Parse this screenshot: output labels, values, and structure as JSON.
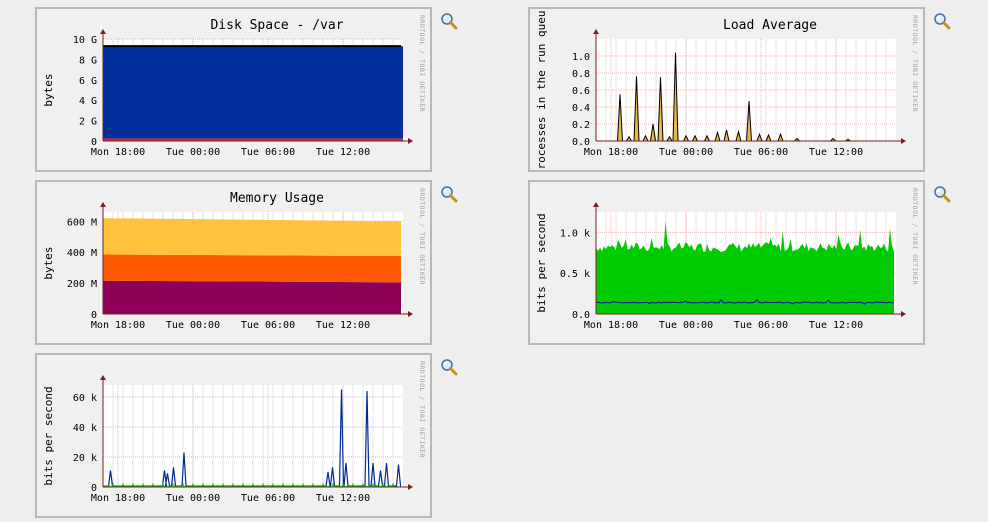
{
  "watermark": "RRDTOOL / TOBI OETIKER",
  "zoom_icon": "magnifier-zoom-icon",
  "charts": [
    {
      "id": "disk",
      "type": "area",
      "title": "Disk Space - /var",
      "ylabel": "bytes",
      "ymax": 10,
      "yticks": [
        {
          "v": 0,
          "label": "0"
        },
        {
          "v": 2,
          "label": "2 G"
        },
        {
          "v": 4,
          "label": "4 G"
        },
        {
          "v": 6,
          "label": "6 G"
        },
        {
          "v": 8,
          "label": "8 G"
        },
        {
          "v": 10,
          "label": "10 G"
        }
      ],
      "xticks": [
        "Mon 18:00",
        "Tue 00:00",
        "Tue 06:00",
        "Tue 12:00"
      ],
      "stack": [
        {
          "color": "#d3243b",
          "value": 0.25
        },
        {
          "color": "#00309c",
          "value": 9.05
        }
      ],
      "topline": {
        "color": "#000000",
        "value": 9.3
      }
    },
    {
      "id": "load",
      "type": "spikes",
      "title": "Load Average",
      "ylabel": "rocesses in the run queu",
      "ymax": 1.2,
      "yticks": [
        {
          "v": 0,
          "label": "0.0"
        },
        {
          "v": 0.2,
          "label": "0.2"
        },
        {
          "v": 0.4,
          "label": "0.4"
        },
        {
          "v": 0.6,
          "label": "0.6"
        },
        {
          "v": 0.8,
          "label": "0.8"
        },
        {
          "v": 1.0,
          "label": "1.0"
        }
      ],
      "xticks": [
        "Mon 18:00",
        "Tue 00:00",
        "Tue 06:00",
        "Tue 12:00"
      ],
      "fill": "#e8b84a",
      "line": "#000000",
      "spikes": [
        [
          0.08,
          0.55
        ],
        [
          0.11,
          0.05
        ],
        [
          0.135,
          0.76
        ],
        [
          0.165,
          0.06
        ],
        [
          0.19,
          0.2
        ],
        [
          0.215,
          0.75
        ],
        [
          0.245,
          0.05
        ],
        [
          0.265,
          1.04
        ],
        [
          0.3,
          0.06
        ],
        [
          0.33,
          0.06
        ],
        [
          0.37,
          0.06
        ],
        [
          0.405,
          0.1
        ],
        [
          0.435,
          0.13
        ],
        [
          0.475,
          0.11
        ],
        [
          0.51,
          0.47
        ],
        [
          0.545,
          0.08
        ],
        [
          0.575,
          0.07
        ],
        [
          0.615,
          0.08
        ],
        [
          0.67,
          0.03
        ],
        [
          0.79,
          0.03
        ],
        [
          0.84,
          0.02
        ]
      ]
    },
    {
      "id": "memory",
      "type": "area",
      "title": "Memory Usage",
      "ylabel": "bytes",
      "ymax": 660,
      "yticks": [
        {
          "v": 0,
          "label": "0"
        },
        {
          "v": 200,
          "label": "200 M"
        },
        {
          "v": 400,
          "label": "400 M"
        },
        {
          "v": 600,
          "label": "600 M"
        }
      ],
      "xticks": [
        "Mon 18:00",
        "Tue 00:00",
        "Tue 06:00",
        "Tue 12:00"
      ],
      "stack_series": [
        {
          "color": "#8c0058",
          "start": 215,
          "end": 205
        },
        {
          "color": "#ff5a00",
          "start": 170,
          "end": 170
        },
        {
          "color": "#ffc23c",
          "start": 235,
          "end": 225
        }
      ]
    },
    {
      "id": "traffic1",
      "type": "noise",
      "title": "",
      "ylabel": "bits per second",
      "ymax": 1.25,
      "yticks": [
        {
          "v": 0,
          "label": "0.0"
        },
        {
          "v": 0.5,
          "label": "0.5 k"
        },
        {
          "v": 1.0,
          "label": "1.0 k"
        }
      ],
      "xticks": [
        "Mon 18:00",
        "Tue 00:00",
        "Tue 06:00",
        "Tue 12:00"
      ],
      "in_color": "#00cc00",
      "out_color": "#002a97",
      "in_level": 0.82,
      "out_level": 0.14
    },
    {
      "id": "traffic2",
      "type": "peaks",
      "title": "",
      "ylabel": "bits per second",
      "ymax": 68,
      "yticks": [
        {
          "v": 0,
          "label": "0"
        },
        {
          "v": 20,
          "label": "20 k"
        },
        {
          "v": 40,
          "label": "40 k"
        },
        {
          "v": 60,
          "label": "60 k"
        }
      ],
      "xticks": [
        "Mon 18:00",
        "Tue 00:00",
        "Tue 06:00",
        "Tue 12:00"
      ],
      "in_color": "#00cc00",
      "out_color": "#002a97",
      "peaks": [
        [
          0.025,
          11
        ],
        [
          0.205,
          11
        ],
        [
          0.215,
          9
        ],
        [
          0.235,
          13
        ],
        [
          0.27,
          23
        ],
        [
          0.75,
          10
        ],
        [
          0.765,
          13
        ],
        [
          0.795,
          65
        ],
        [
          0.81,
          16
        ],
        [
          0.88,
          64
        ],
        [
          0.9,
          16
        ],
        [
          0.925,
          11
        ],
        [
          0.945,
          16
        ],
        [
          0.985,
          15
        ]
      ]
    }
  ],
  "layout": {}
}
